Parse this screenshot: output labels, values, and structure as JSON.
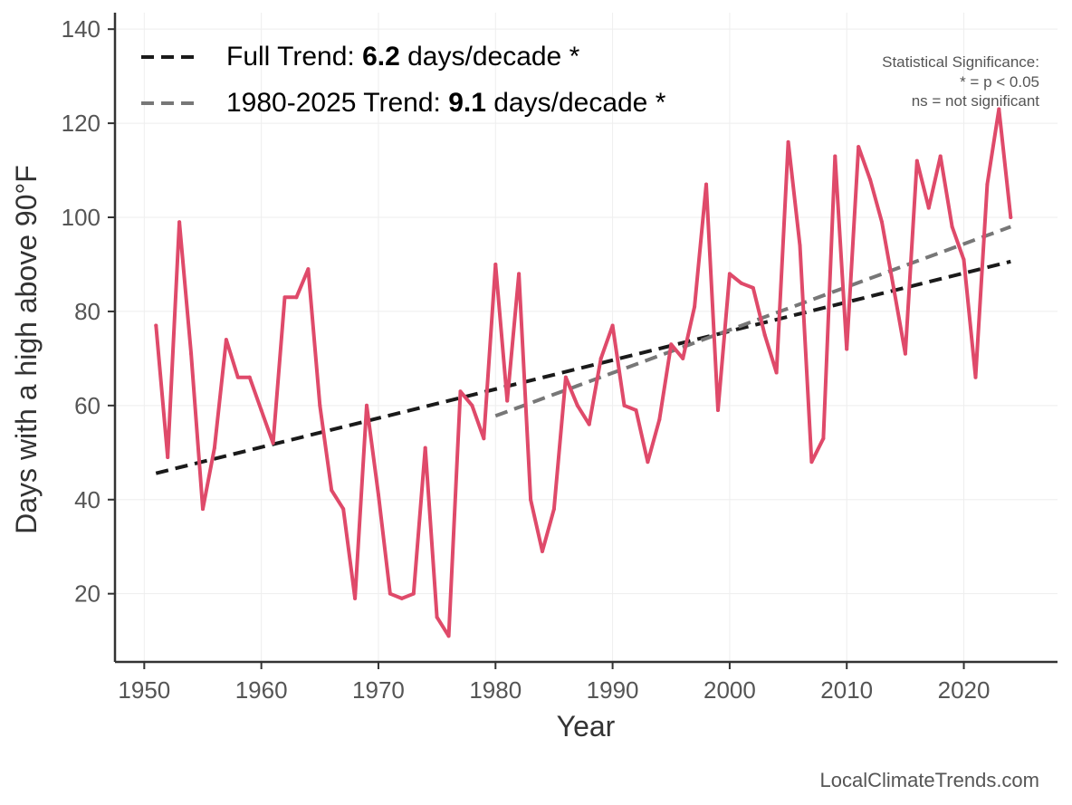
{
  "chart_data": {
    "type": "line",
    "title": "",
    "xlabel": "Year",
    "ylabel": "Days with a high above 90°F",
    "xlim": [
      1947.5,
      2028
    ],
    "ylim": [
      5.5,
      143.5
    ],
    "xticks": [
      1950,
      1960,
      1970,
      1980,
      1990,
      2000,
      2010,
      2020
    ],
    "yticks": [
      20,
      40,
      60,
      80,
      100,
      120,
      140
    ],
    "grid": true,
    "legend_placement": "top-left",
    "colors": {
      "series": "#df4a6a",
      "full_trend": "#1a1a1a",
      "recent_trend": "#777777",
      "grid": "#eeeeee",
      "axis": "#333333"
    },
    "series": [
      {
        "x": [
          1951,
          1952,
          1953,
          1954,
          1955,
          1956,
          1957,
          1958,
          1959,
          1960,
          1961,
          1962,
          1963,
          1964,
          1965,
          1966,
          1967,
          1968,
          1969,
          1970,
          1971,
          1972,
          1973,
          1974,
          1975,
          1976,
          1977,
          1978,
          1979,
          1980,
          1981,
          1982,
          1983,
          1984,
          1985,
          1986,
          1987,
          1988,
          1989,
          1990,
          1991,
          1992,
          1993,
          1994,
          1995,
          1996,
          1997,
          1998,
          1999,
          2000,
          2001,
          2002,
          2003,
          2004,
          2005,
          2006,
          2007,
          2008,
          2009,
          2010,
          2011,
          2012,
          2013,
          2014,
          2015,
          2016,
          2017,
          2018,
          2019,
          2020,
          2021,
          2022,
          2023,
          2024
        ],
        "values": [
          77,
          49,
          99,
          71,
          38,
          51,
          74,
          66,
          66,
          59,
          52,
          83,
          83,
          89,
          60,
          42,
          38,
          19,
          60,
          41,
          20,
          19,
          20,
          51,
          15,
          11,
          63,
          60,
          53,
          90,
          61,
          88,
          40,
          29,
          38,
          66,
          60,
          56,
          70,
          77,
          60,
          59,
          48,
          57,
          73,
          70,
          81,
          107,
          59,
          88,
          86,
          85,
          75,
          67,
          116,
          94,
          48,
          53,
          113,
          72,
          115,
          108,
          99,
          85,
          71,
          112,
          102,
          113,
          98,
          91,
          66,
          107,
          123,
          100
        ]
      }
    ],
    "trend_lines": [
      {
        "x": [
          1951,
          2024
        ],
        "y": [
          45.6,
          90.6
        ]
      },
      {
        "x": [
          1980,
          2024
        ],
        "y": [
          57.8,
          98.0
        ]
      }
    ],
    "legend": [
      {
        "prefix": "Full Trend: ",
        "value": "6.2",
        "suffix": " days/decade *"
      },
      {
        "prefix": "1980-2025 Trend: ",
        "value": "9.1",
        "suffix": " days/decade *"
      }
    ],
    "annotation": [
      "Statistical Significance:",
      "* = p < 0.05",
      "ns = not significant"
    ],
    "credit": "LocalClimateTrends.com"
  }
}
